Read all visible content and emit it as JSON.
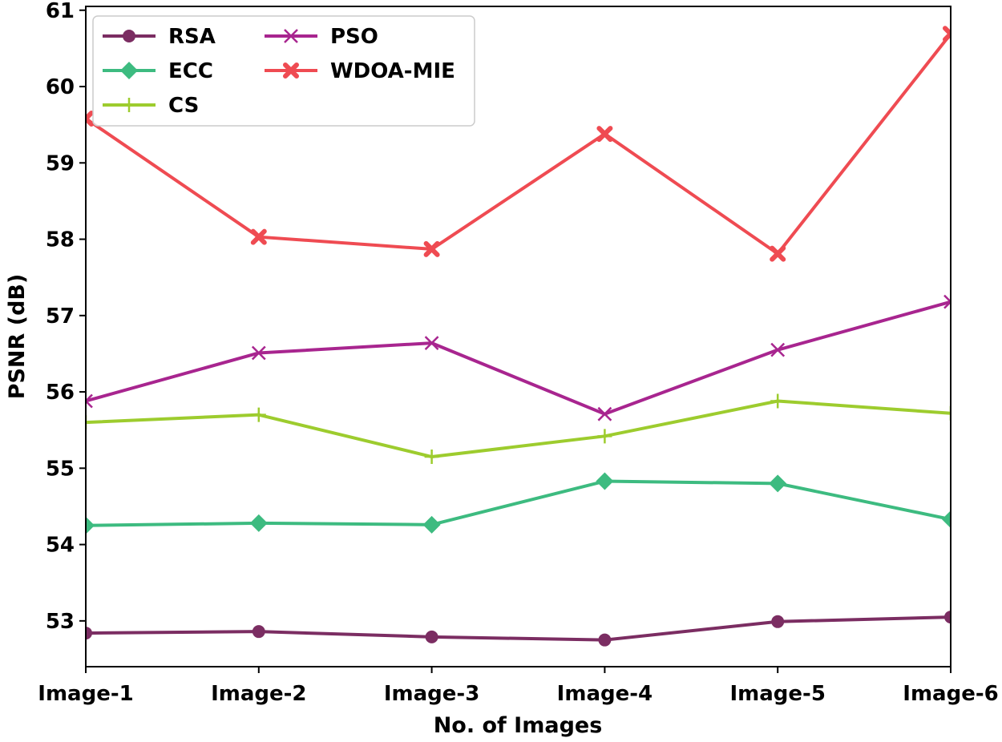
{
  "chart_data": {
    "type": "line",
    "title": "",
    "xlabel": "No. of Images",
    "ylabel": "PSNR (dB)",
    "categories": [
      "Image-1",
      "Image-2",
      "Image-3",
      "Image-4",
      "Image-5",
      "Image-6"
    ],
    "ylim": [
      52.4,
      61.05
    ],
    "yticks": [
      53,
      54,
      55,
      56,
      57,
      58,
      59,
      60,
      61
    ],
    "ytick_labels": [
      "53",
      "54",
      "55",
      "56",
      "57",
      "58",
      "59",
      "60",
      "61"
    ],
    "grid": false,
    "legend_position": "top-left",
    "series": [
      {
        "name": "RSA",
        "color": "#7b2d62",
        "marker": "circle",
        "values": [
          52.84,
          52.86,
          52.79,
          52.75,
          52.99,
          53.05
        ]
      },
      {
        "name": "ECC",
        "color": "#3dbb80",
        "marker": "diamond",
        "values": [
          54.25,
          54.28,
          54.26,
          54.83,
          54.8,
          54.33
        ]
      },
      {
        "name": "CS",
        "color": "#9dcc2e",
        "marker": "plus",
        "values": [
          55.6,
          55.7,
          55.15,
          55.42,
          55.88,
          55.72
        ]
      },
      {
        "name": "PSO",
        "color": "#a8258f",
        "marker": "x",
        "values": [
          55.88,
          56.51,
          56.64,
          55.71,
          56.55,
          57.18
        ]
      },
      {
        "name": "WDOA-MIE",
        "color": "#ef4b52",
        "marker": "xfilled",
        "values": [
          59.58,
          58.03,
          57.87,
          59.38,
          57.81,
          60.69
        ]
      }
    ]
  }
}
